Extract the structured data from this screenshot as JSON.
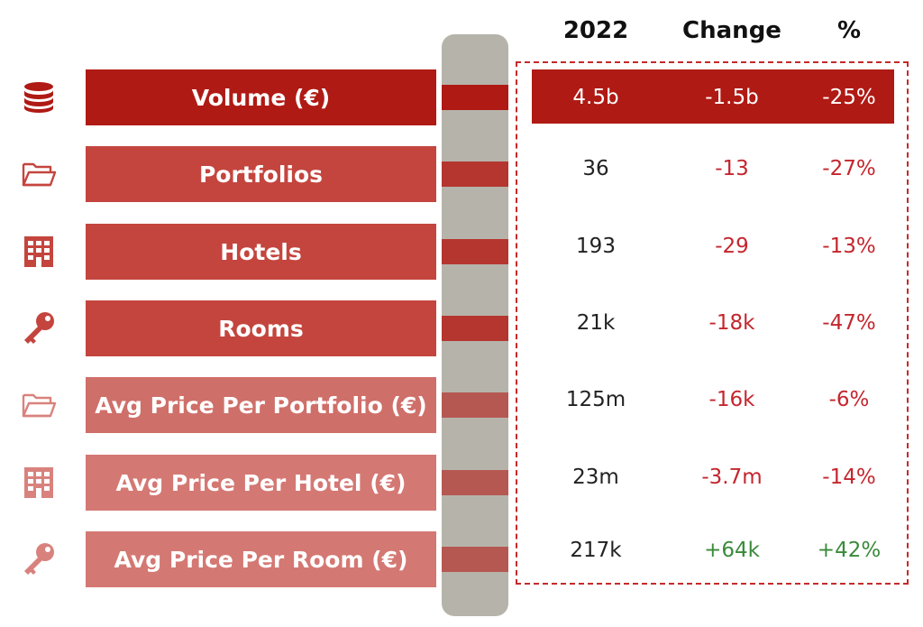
{
  "headers": {
    "year": "2022",
    "change": "Change",
    "pct": "%"
  },
  "colors": {
    "row_label_bg": [
      "#b01a14",
      "#c4453e",
      "#c4453e",
      "#c4453e",
      "#cf6f69",
      "#d47873",
      "#d47873"
    ],
    "connector": [
      "#b01a14",
      "#b5362f",
      "#b5362f",
      "#b5362f",
      "#b65852",
      "#b65852",
      "#b65852"
    ],
    "icon": [
      "#b01a14",
      "#c4453e",
      "#c4453e",
      "#c4453e",
      "#d9827d",
      "#d9827d",
      "#d9827d"
    ],
    "negative": "#c4262e",
    "positive": "#3a8a3a",
    "neutral": "#222222",
    "highlight_text": "#ffffff"
  },
  "chart_data": {
    "type": "table",
    "columns": [
      "2022",
      "Change",
      "%"
    ],
    "rows": [
      {
        "label": "Volume (€)",
        "icon": "database-icon",
        "value": "4.5b",
        "change": "-1.5b",
        "pct": "-25%",
        "highlight": true
      },
      {
        "label": "Portfolios",
        "icon": "folder-icon",
        "value": "36",
        "change": "-13",
        "pct": "-27%"
      },
      {
        "label": "Hotels",
        "icon": "building-icon",
        "value": "193",
        "change": "-29",
        "pct": "-13%"
      },
      {
        "label": "Rooms",
        "icon": "key-icon",
        "value": "21k",
        "change": "-18k",
        "pct": "-47%"
      },
      {
        "label": "Avg Price Per Portfolio (€)",
        "icon": "folder-icon",
        "value": "125m",
        "change": "-16k",
        "pct": "-6%"
      },
      {
        "label": "Avg Price Per Hotel (€)",
        "icon": "building-icon",
        "value": "23m",
        "change": "-3.7m",
        "pct": "-14%"
      },
      {
        "label": "Avg Price Per Room (€)",
        "icon": "key-icon",
        "value": "217k",
        "change": "+64k",
        "pct": "+42%"
      }
    ]
  }
}
